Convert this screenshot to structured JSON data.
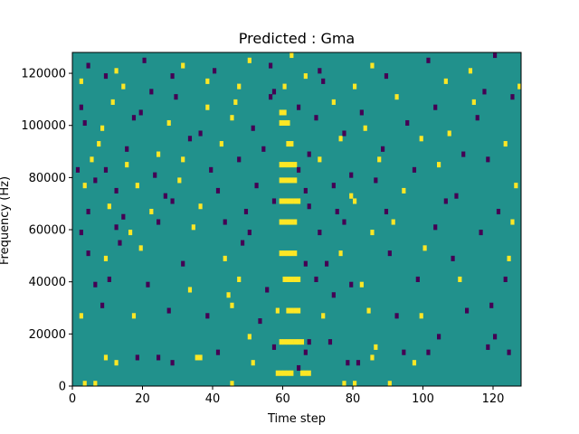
{
  "chart_data": {
    "type": "heatmap",
    "title": "Predicted : Gma",
    "xlabel": "Time step",
    "ylabel": "Frequency (Hz)",
    "xlim": [
      0,
      128
    ],
    "ylim": [
      0,
      128000
    ],
    "xticks": [
      0,
      20,
      40,
      60,
      80,
      100,
      120
    ],
    "yticks": [
      0,
      20000,
      40000,
      60000,
      80000,
      100000,
      120000
    ],
    "xtick_labels": [
      "0",
      "20",
      "40",
      "60",
      "80",
      "100",
      "120"
    ],
    "ytick_labels": [
      "0",
      "20000",
      "40000",
      "60000",
      "80000",
      "100000",
      "120000"
    ],
    "n_time_steps": 128,
    "n_freq_bins": 64,
    "freq_bin_hz": 2000,
    "values_legend": {
      "-1": "low",
      "0": "neutral",
      "1": "high"
    },
    "colors": {
      "-1": "#440154",
      "0": "#21918c",
      "1": "#fde725"
    },
    "background_value": 0,
    "cells": [
      [
        3,
        0,
        1
      ],
      [
        6,
        0,
        1
      ],
      [
        45,
        0,
        1
      ],
      [
        58,
        2,
        1
      ],
      [
        59,
        2,
        1
      ],
      [
        60,
        2,
        1
      ],
      [
        61,
        2,
        1
      ],
      [
        62,
        2,
        1
      ],
      [
        65,
        2,
        1
      ],
      [
        66,
        2,
        1
      ],
      [
        67,
        2,
        1
      ],
      [
        77,
        0,
        1
      ],
      [
        80,
        0,
        1
      ],
      [
        90,
        0,
        1
      ],
      [
        12,
        4,
        1
      ],
      [
        18,
        5,
        -1
      ],
      [
        28,
        4,
        -1
      ],
      [
        36,
        5,
        1
      ],
      [
        51,
        4,
        1
      ],
      [
        64,
        3,
        -1
      ],
      [
        66,
        6,
        -1
      ],
      [
        78,
        4,
        -1
      ],
      [
        81,
        4,
        -1
      ],
      [
        85,
        5,
        1
      ],
      [
        94,
        6,
        -1
      ],
      [
        97,
        4,
        1
      ],
      [
        101,
        6,
        -1
      ],
      [
        118,
        7,
        -1
      ],
      [
        124,
        6,
        -1
      ],
      [
        9,
        5,
        1
      ],
      [
        24,
        5,
        -1
      ],
      [
        35,
        5,
        1
      ],
      [
        41,
        6,
        -1
      ],
      [
        50,
        9,
        1
      ],
      [
        57,
        7,
        -1
      ],
      [
        59,
        8,
        1
      ],
      [
        60,
        8,
        1
      ],
      [
        61,
        8,
        1
      ],
      [
        62,
        8,
        1
      ],
      [
        63,
        8,
        1
      ],
      [
        64,
        8,
        1
      ],
      [
        65,
        8,
        1
      ],
      [
        67,
        8,
        -1
      ],
      [
        73,
        8,
        -1
      ],
      [
        86,
        7,
        1
      ],
      [
        104,
        9,
        -1
      ],
      [
        120,
        9,
        -1
      ],
      [
        2,
        13,
        1
      ],
      [
        8,
        15,
        -1
      ],
      [
        17,
        13,
        1
      ],
      [
        27,
        14,
        -1
      ],
      [
        38,
        13,
        -1
      ],
      [
        45,
        15,
        1
      ],
      [
        53,
        12,
        -1
      ],
      [
        58,
        14,
        1
      ],
      [
        61,
        14,
        1
      ],
      [
        62,
        14,
        1
      ],
      [
        63,
        14,
        1
      ],
      [
        64,
        14,
        1
      ],
      [
        71,
        13,
        1
      ],
      [
        84,
        14,
        1
      ],
      [
        92,
        13,
        -1
      ],
      [
        99,
        13,
        1
      ],
      [
        112,
        14,
        -1
      ],
      [
        119,
        15,
        -1
      ],
      [
        6,
        19,
        -1
      ],
      [
        10,
        20,
        -1
      ],
      [
        21,
        19,
        -1
      ],
      [
        33,
        18,
        1
      ],
      [
        44,
        17,
        1
      ],
      [
        47,
        20,
        1
      ],
      [
        55,
        18,
        -1
      ],
      [
        60,
        20,
        1
      ],
      [
        61,
        20,
        1
      ],
      [
        62,
        20,
        1
      ],
      [
        63,
        20,
        1
      ],
      [
        64,
        20,
        1
      ],
      [
        69,
        20,
        -1
      ],
      [
        74,
        17,
        -1
      ],
      [
        79,
        19,
        -1
      ],
      [
        82,
        19,
        1
      ],
      [
        98,
        20,
        -1
      ],
      [
        110,
        20,
        1
      ],
      [
        123,
        20,
        -1
      ],
      [
        4,
        25,
        -1
      ],
      [
        9,
        24,
        1
      ],
      [
        13,
        27,
        -1
      ],
      [
        19,
        26,
        1
      ],
      [
        31,
        23,
        -1
      ],
      [
        43,
        24,
        1
      ],
      [
        48,
        27,
        -1
      ],
      [
        59,
        25,
        1
      ],
      [
        60,
        25,
        1
      ],
      [
        61,
        25,
        1
      ],
      [
        62,
        25,
        1
      ],
      [
        63,
        25,
        1
      ],
      [
        66,
        23,
        -1
      ],
      [
        72,
        23,
        -1
      ],
      [
        76,
        25,
        1
      ],
      [
        90,
        25,
        -1
      ],
      [
        100,
        26,
        1
      ],
      [
        108,
        24,
        -1
      ],
      [
        124,
        24,
        1
      ],
      [
        2,
        29,
        -1
      ],
      [
        12,
        30,
        -1
      ],
      [
        16,
        29,
        1
      ],
      [
        24,
        31,
        -1
      ],
      [
        34,
        30,
        1
      ],
      [
        43,
        31,
        -1
      ],
      [
        50,
        29,
        -1
      ],
      [
        59,
        31,
        1
      ],
      [
        60,
        31,
        1
      ],
      [
        61,
        31,
        1
      ],
      [
        62,
        31,
        1
      ],
      [
        63,
        31,
        1
      ],
      [
        70,
        29,
        -1
      ],
      [
        77,
        31,
        -1
      ],
      [
        85,
        29,
        1
      ],
      [
        91,
        31,
        1
      ],
      [
        103,
        30,
        -1
      ],
      [
        116,
        29,
        -1
      ],
      [
        125,
        31,
        1
      ],
      [
        4,
        33,
        -1
      ],
      [
        10,
        34,
        1
      ],
      [
        14,
        32,
        -1
      ],
      [
        22,
        33,
        1
      ],
      [
        28,
        35,
        -1
      ],
      [
        36,
        34,
        1
      ],
      [
        49,
        33,
        -1
      ],
      [
        57,
        35,
        -1
      ],
      [
        59,
        35,
        1
      ],
      [
        60,
        35,
        1
      ],
      [
        61,
        35,
        1
      ],
      [
        62,
        35,
        1
      ],
      [
        63,
        35,
        1
      ],
      [
        64,
        35,
        1
      ],
      [
        67,
        34,
        -1
      ],
      [
        75,
        33,
        -1
      ],
      [
        80,
        35,
        1
      ],
      [
        89,
        33,
        -1
      ],
      [
        106,
        35,
        -1
      ],
      [
        121,
        33,
        -1
      ],
      [
        3,
        38,
        1
      ],
      [
        6,
        39,
        -1
      ],
      [
        12,
        37,
        -1
      ],
      [
        18,
        38,
        1
      ],
      [
        26,
        36,
        -1
      ],
      [
        30,
        39,
        1
      ],
      [
        41,
        37,
        -1
      ],
      [
        52,
        38,
        -1
      ],
      [
        59,
        39,
        1
      ],
      [
        60,
        39,
        1
      ],
      [
        61,
        39,
        1
      ],
      [
        62,
        39,
        1
      ],
      [
        63,
        39,
        1
      ],
      [
        66,
        37,
        -1
      ],
      [
        74,
        38,
        -1
      ],
      [
        79,
        36,
        1
      ],
      [
        86,
        39,
        -1
      ],
      [
        94,
        37,
        1
      ],
      [
        109,
        36,
        -1
      ],
      [
        126,
        38,
        1
      ],
      [
        1,
        41,
        -1
      ],
      [
        5,
        43,
        1
      ],
      [
        9,
        41,
        -1
      ],
      [
        15,
        42,
        1
      ],
      [
        23,
        40,
        -1
      ],
      [
        31,
        43,
        1
      ],
      [
        39,
        41,
        -1
      ],
      [
        47,
        43,
        -1
      ],
      [
        59,
        42,
        1
      ],
      [
        60,
        42,
        1
      ],
      [
        61,
        42,
        1
      ],
      [
        62,
        42,
        1
      ],
      [
        63,
        42,
        1
      ],
      [
        64,
        41,
        -1
      ],
      [
        70,
        43,
        1
      ],
      [
        79,
        40,
        -1
      ],
      [
        87,
        43,
        1
      ],
      [
        97,
        41,
        -1
      ],
      [
        104,
        42,
        1
      ],
      [
        118,
        43,
        -1
      ],
      [
        7,
        46,
        1
      ],
      [
        15,
        45,
        -1
      ],
      [
        24,
        44,
        1
      ],
      [
        33,
        47,
        -1
      ],
      [
        42,
        46,
        1
      ],
      [
        54,
        45,
        -1
      ],
      [
        61,
        46,
        1
      ],
      [
        62,
        46,
        1
      ],
      [
        67,
        44,
        -1
      ],
      [
        76,
        47,
        1
      ],
      [
        88,
        45,
        -1
      ],
      [
        99,
        47,
        1
      ],
      [
        111,
        44,
        -1
      ],
      [
        123,
        46,
        1
      ],
      [
        3,
        50,
        -1
      ],
      [
        8,
        49,
        1
      ],
      [
        17,
        51,
        -1
      ],
      [
        27,
        50,
        1
      ],
      [
        36,
        48,
        -1
      ],
      [
        45,
        51,
        1
      ],
      [
        51,
        49,
        -1
      ],
      [
        59,
        50,
        1
      ],
      [
        60,
        50,
        1
      ],
      [
        61,
        50,
        1
      ],
      [
        69,
        51,
        -1
      ],
      [
        77,
        48,
        -1
      ],
      [
        83,
        49,
        1
      ],
      [
        95,
        50,
        -1
      ],
      [
        107,
        48,
        1
      ],
      [
        115,
        51,
        -1
      ],
      [
        2,
        53,
        -1
      ],
      [
        11,
        54,
        1
      ],
      [
        19,
        52,
        -1
      ],
      [
        29,
        55,
        -1
      ],
      [
        38,
        53,
        1
      ],
      [
        46,
        54,
        1
      ],
      [
        56,
        55,
        -1
      ],
      [
        59,
        52,
        1
      ],
      [
        60,
        52,
        1
      ],
      [
        64,
        53,
        -1
      ],
      [
        74,
        54,
        1
      ],
      [
        82,
        52,
        -1
      ],
      [
        92,
        55,
        1
      ],
      [
        103,
        53,
        -1
      ],
      [
        114,
        54,
        1
      ],
      [
        125,
        55,
        -1
      ],
      [
        2,
        58,
        1
      ],
      [
        9,
        59,
        -1
      ],
      [
        14,
        57,
        1
      ],
      [
        22,
        56,
        -1
      ],
      [
        28,
        59,
        -1
      ],
      [
        38,
        58,
        1
      ],
      [
        47,
        57,
        1
      ],
      [
        57,
        56,
        -1
      ],
      [
        60,
        57,
        1
      ],
      [
        66,
        59,
        1
      ],
      [
        71,
        58,
        -1
      ],
      [
        80,
        57,
        1
      ],
      [
        89,
        59,
        -1
      ],
      [
        106,
        58,
        1
      ],
      [
        117,
        56,
        -1
      ],
      [
        127,
        57,
        1
      ],
      [
        4,
        61,
        -1
      ],
      [
        12,
        60,
        1
      ],
      [
        20,
        62,
        -1
      ],
      [
        31,
        61,
        1
      ],
      [
        40,
        60,
        -1
      ],
      [
        50,
        62,
        1
      ],
      [
        56,
        61,
        -1
      ],
      [
        62,
        63,
        1
      ],
      [
        70,
        60,
        -1
      ],
      [
        85,
        61,
        1
      ],
      [
        101,
        62,
        -1
      ],
      [
        113,
        60,
        1
      ],
      [
        120,
        63,
        -1
      ]
    ]
  }
}
